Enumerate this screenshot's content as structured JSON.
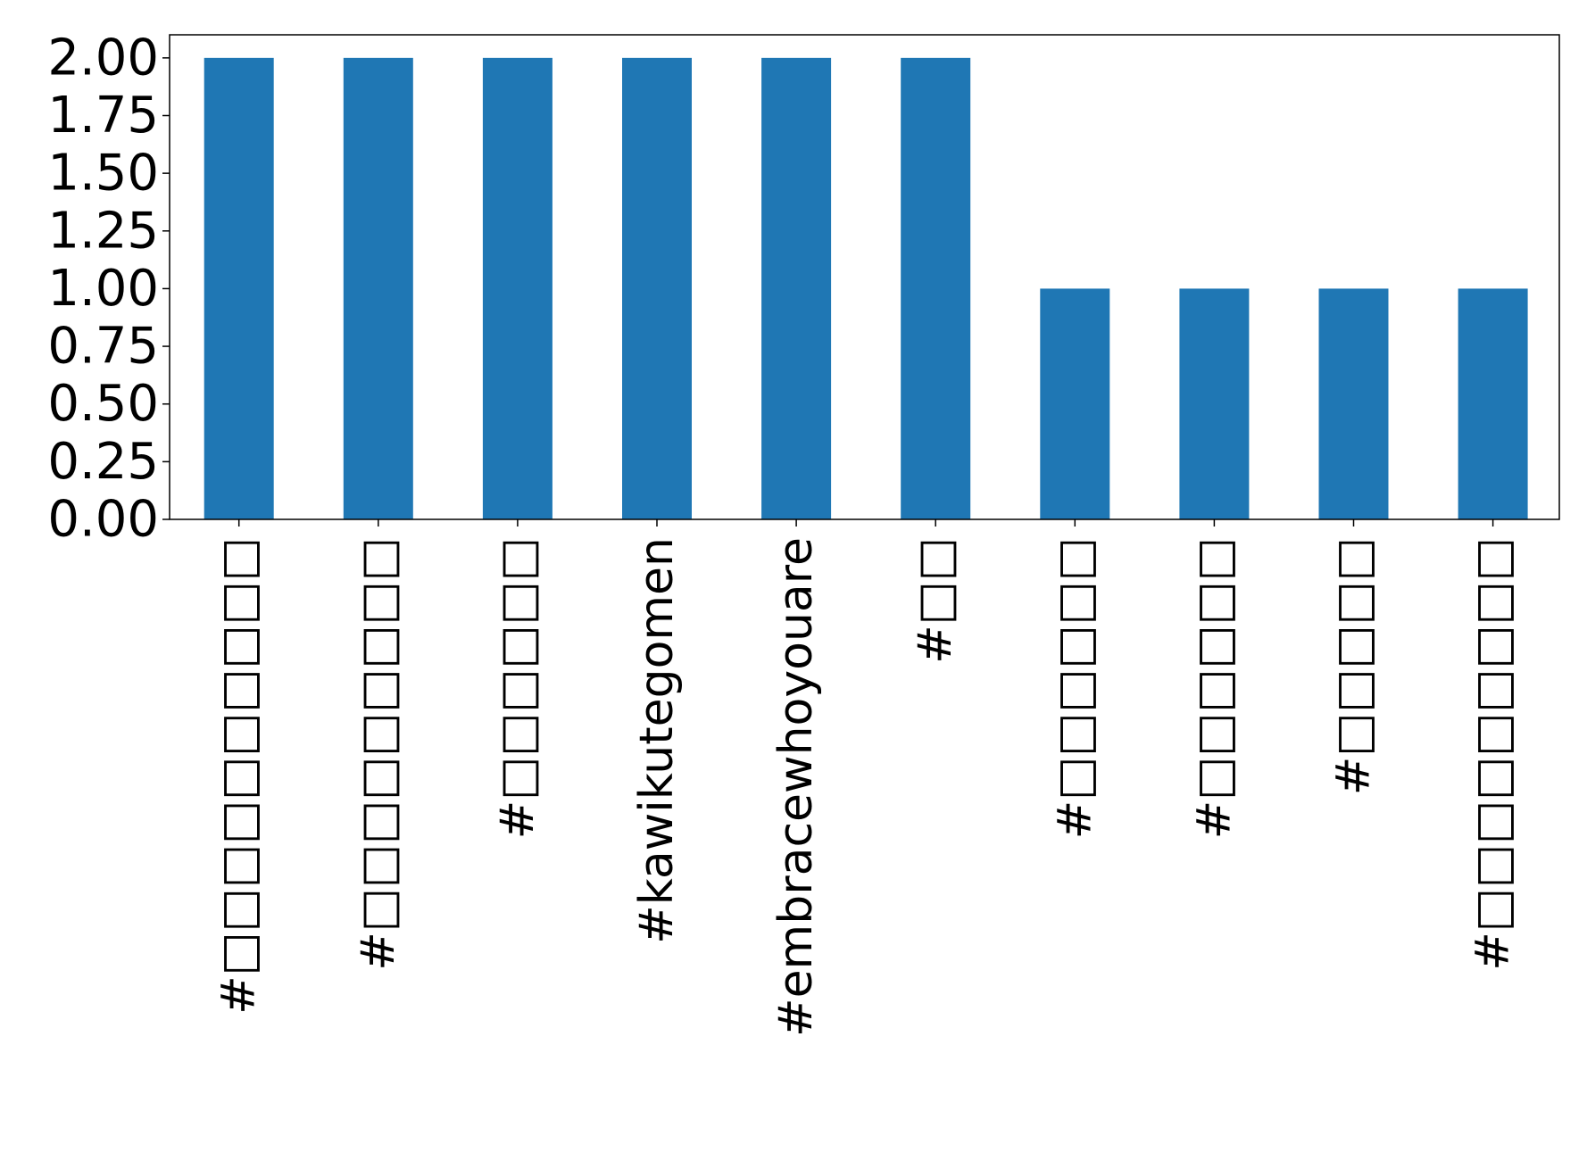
{
  "chart_data": {
    "type": "bar",
    "title": "",
    "xlabel": "",
    "ylabel": "",
    "categories": [
      "#□□□□□□□□□□",
      "#□□□□□□□□□",
      "#□□□□□□",
      "#kawikutegomen",
      "#embracewhoyouare",
      "#□□",
      "#□□□□□□",
      "#□□□□□□",
      "#□□□□□",
      "#□□□□□□□□□"
    ],
    "values": [
      2,
      2,
      2,
      2,
      2,
      2,
      1,
      1,
      1,
      1
    ],
    "ylim": [
      0,
      2.1
    ],
    "yticks": [
      "0.00",
      "0.25",
      "0.50",
      "0.75",
      "1.00",
      "1.25",
      "1.50",
      "1.75",
      "2.00"
    ],
    "grid": false,
    "legend": "none",
    "bar_color": "#1f77b4"
  }
}
